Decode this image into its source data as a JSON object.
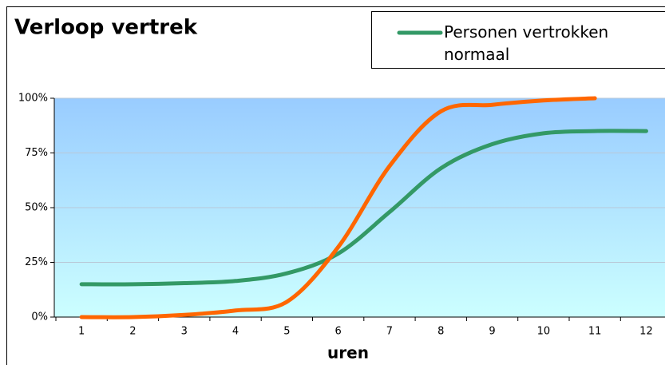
{
  "chart_data": {
    "type": "line",
    "title": "Verloop vertrek",
    "x_label": "uren",
    "categories": [
      "1",
      "2",
      "3",
      "4",
      "5",
      "6",
      "7",
      "8",
      "9",
      "10",
      "11",
      "12"
    ],
    "series": [
      {
        "name": "Personen vertrokken normaal",
        "color": "#339966",
        "values": [
          15,
          15,
          15.5,
          16.5,
          20,
          29,
          48,
          68,
          79,
          84,
          85,
          85
        ]
      },
      {
        "color": "#ff6600",
        "values": [
          0,
          0,
          1,
          3,
          7,
          32,
          69,
          94,
          97,
          99,
          100,
          null
        ]
      }
    ],
    "ylim": [
      0,
      100
    ],
    "yticks": [
      {
        "value": 0,
        "label": "0%"
      },
      {
        "value": 25,
        "label": "25%"
      },
      {
        "value": 50,
        "label": "50%"
      },
      {
        "value": 75,
        "label": "75%"
      },
      {
        "value": 100,
        "label": "100%"
      }
    ],
    "grid": true,
    "legend": "top-right"
  }
}
